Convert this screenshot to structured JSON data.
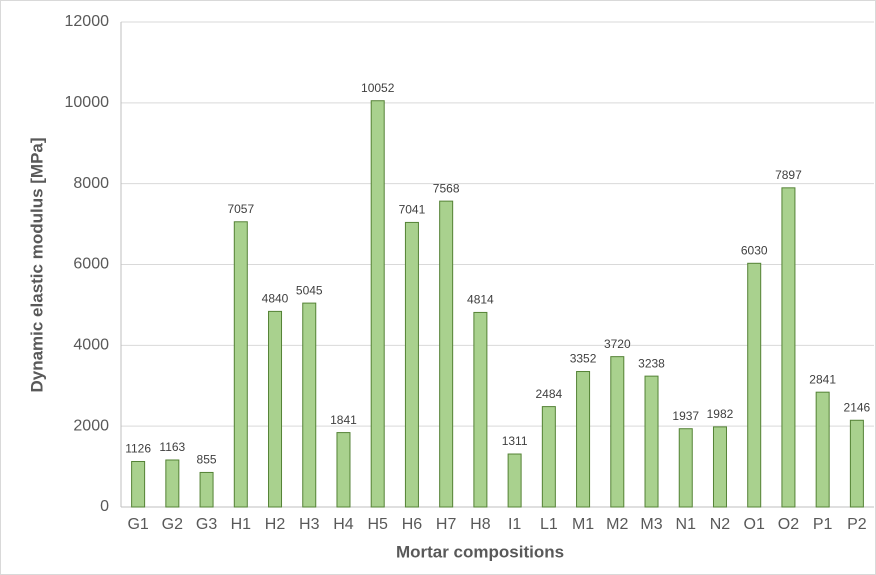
{
  "chart_data": {
    "type": "bar",
    "x_label": "Mortar compositions",
    "y_label": "Dynamic elastic modulus [MPa]",
    "categories": [
      "G1",
      "G2",
      "G3",
      "H1",
      "H2",
      "H3",
      "H4",
      "H5",
      "H6",
      "H7",
      "H8",
      "I1",
      "L1",
      "M1",
      "M2",
      "M3",
      "N1",
      "N2",
      "O1",
      "O2",
      "P1",
      "P2"
    ],
    "values": [
      1126,
      1163,
      855,
      7057,
      4840,
      5045,
      1841,
      10052,
      7041,
      7568,
      4814,
      1311,
      2484,
      3352,
      3720,
      3238,
      1937,
      1982,
      6030,
      7897,
      2841,
      2146
    ],
    "color": "#a9d18e",
    "edge_color": "#548235",
    "ylim": [
      0,
      12000
    ],
    "yticks": [
      0,
      2000,
      4000,
      6000,
      8000,
      10000,
      12000
    ],
    "grid": true
  }
}
